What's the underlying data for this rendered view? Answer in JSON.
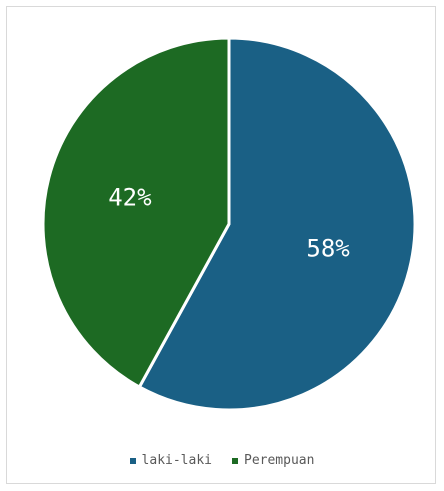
{
  "chart_data": {
    "type": "pie",
    "title": "",
    "categories": [
      "laki-laki",
      "Perempuan"
    ],
    "values": [
      58,
      42
    ],
    "labels": [
      "58%",
      "42%"
    ],
    "colors": [
      "#1a6085",
      "#1d6a23"
    ],
    "legend_position": "bottom"
  }
}
